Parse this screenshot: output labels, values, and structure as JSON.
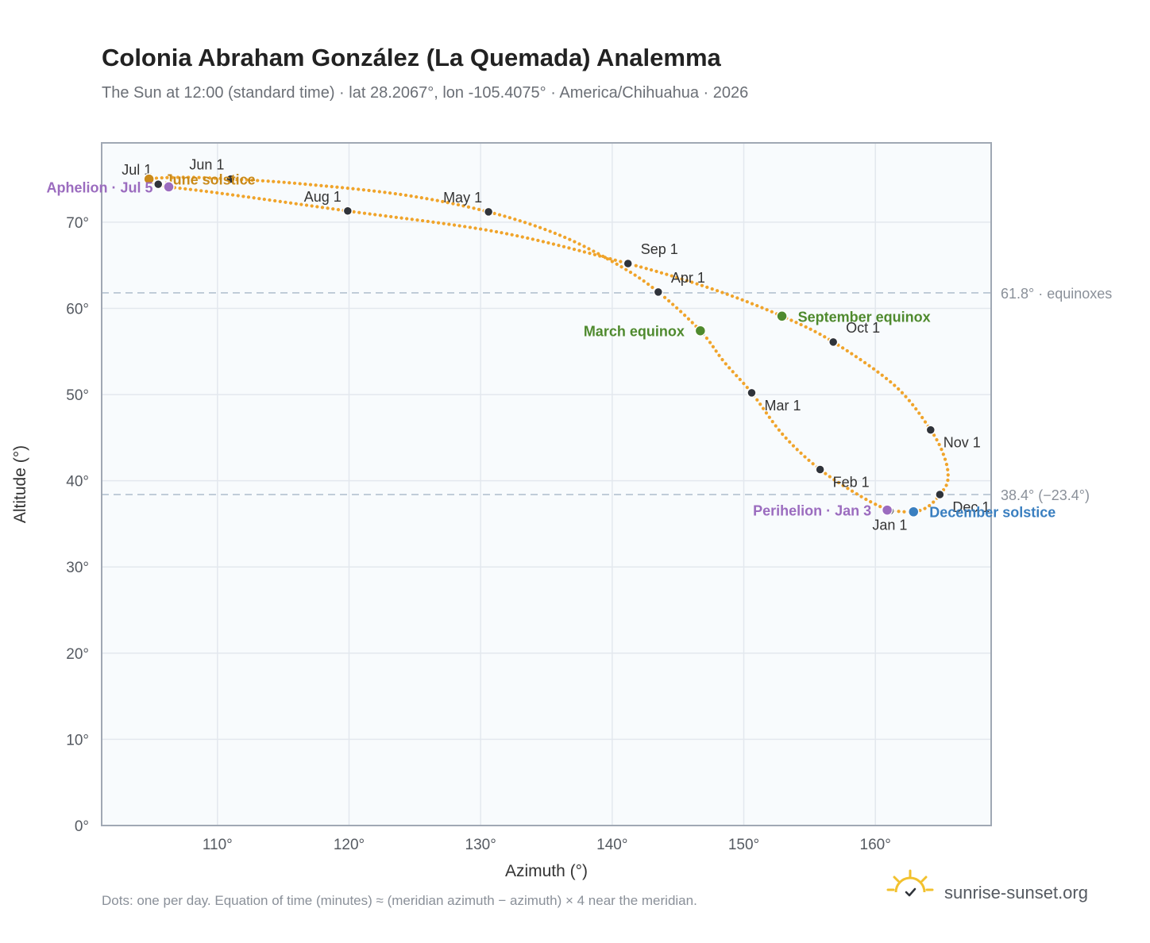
{
  "chart_data": {
    "type": "scatter",
    "title": "Colonia Abraham González (La Quemada) Analemma",
    "subtitle": "The Sun at 12:00 (standard time) · lat 28.2067°, lon -105.4075° · America/Chihuahua · 2026",
    "xlabel": "Azimuth (°)",
    "ylabel": "Altitude (°)",
    "xlim": [
      101.2,
      168.8
    ],
    "ylim": [
      0,
      79.2
    ],
    "x_ticks": [
      "110°",
      "120°",
      "130°",
      "140°",
      "150°",
      "160°"
    ],
    "y_ticks": [
      "0°",
      "10°",
      "20°",
      "30°",
      "40°",
      "50°",
      "60°",
      "70°"
    ],
    "grid": true,
    "reference_lines": [
      {
        "altitude": 61.8,
        "label": "61.8° · equinoxes"
      },
      {
        "altitude": 38.4,
        "label": "38.4° (−23.4°)"
      }
    ],
    "curve_path": [
      {
        "date": "Jan 1",
        "az": 161.1,
        "alt": 36.5
      },
      {
        "date": "Jan 15",
        "az": 159.0,
        "alt": 38.1
      },
      {
        "date": "Feb 1",
        "az": 155.8,
        "alt": 41.3
      },
      {
        "date": "Feb 15",
        "az": 153.0,
        "alt": 45.3
      },
      {
        "date": "Mar 1",
        "az": 150.6,
        "alt": 50.2
      },
      {
        "date": "Mar 10",
        "az": 148.5,
        "alt": 53.8
      },
      {
        "date": "Mar 20",
        "az": 146.7,
        "alt": 57.4
      },
      {
        "date": "Apr 1",
        "az": 143.5,
        "alt": 61.9
      },
      {
        "date": "Apr 10",
        "az": 140.5,
        "alt": 65.0
      },
      {
        "date": "Apr 20",
        "az": 136.0,
        "alt": 68.5
      },
      {
        "date": "May 1",
        "az": 130.6,
        "alt": 71.2
      },
      {
        "date": "May 10",
        "az": 124.0,
        "alt": 73.2
      },
      {
        "date": "May 20",
        "az": 116.0,
        "alt": 74.5
      },
      {
        "date": "Jun 1",
        "az": 111.0,
        "alt": 75.0
      },
      {
        "date": "Jun 10",
        "az": 107.5,
        "alt": 75.2
      },
      {
        "date": "Jun 21",
        "az": 104.8,
        "alt": 75.0
      },
      {
        "date": "Jul 1",
        "az": 105.5,
        "alt": 74.4
      },
      {
        "date": "Jul 5",
        "az": 106.3,
        "alt": 74.1
      },
      {
        "date": "Jul 15",
        "az": 110.0,
        "alt": 73.4
      },
      {
        "date": "Aug 1",
        "az": 119.9,
        "alt": 71.3
      },
      {
        "date": "Aug 15",
        "az": 131.5,
        "alt": 68.8
      },
      {
        "date": "Sep 1",
        "az": 141.2,
        "alt": 65.2
      },
      {
        "date": "Sep 10",
        "az": 147.5,
        "alt": 62.3
      },
      {
        "date": "Sep 22",
        "az": 152.9,
        "alt": 59.1
      },
      {
        "date": "Oct 1",
        "az": 156.8,
        "alt": 56.1
      },
      {
        "date": "Oct 15",
        "az": 161.5,
        "alt": 51.0
      },
      {
        "date": "Nov 1",
        "az": 164.2,
        "alt": 45.9
      },
      {
        "date": "Nov 10",
        "az": 165.3,
        "alt": 42.5
      },
      {
        "date": "Nov 20",
        "az": 165.5,
        "alt": 40.0
      },
      {
        "date": "Dec 1",
        "az": 164.9,
        "alt": 38.4
      },
      {
        "date": "Dec 11",
        "az": 164.0,
        "alt": 37.0
      },
      {
        "date": "Dec 21",
        "az": 162.9,
        "alt": 36.4
      },
      {
        "date": "Dec 31",
        "az": 161.3,
        "alt": 36.5
      }
    ],
    "month_markers": [
      {
        "label": "Jan 1",
        "az": 161.1,
        "alt": 36.5,
        "anchor": "below"
      },
      {
        "label": "Feb 1",
        "az": 155.8,
        "alt": 41.3,
        "anchor": "below-right"
      },
      {
        "label": "Mar 1",
        "az": 150.6,
        "alt": 50.2,
        "anchor": "below-right"
      },
      {
        "label": "Apr 1",
        "az": 143.5,
        "alt": 61.9,
        "anchor": "above-right"
      },
      {
        "label": "May 1",
        "az": 130.6,
        "alt": 71.2,
        "anchor": "above-left"
      },
      {
        "label": "Jun 1",
        "az": 111.0,
        "alt": 75.0,
        "anchor": "above-left"
      },
      {
        "label": "Jul 1",
        "az": 105.5,
        "alt": 74.4,
        "anchor": "above-left"
      },
      {
        "label": "Aug 1",
        "az": 119.9,
        "alt": 71.3,
        "anchor": "above-left"
      },
      {
        "label": "Sep 1",
        "az": 141.2,
        "alt": 65.2,
        "anchor": "above-right"
      },
      {
        "label": "Oct 1",
        "az": 156.8,
        "alt": 56.1,
        "anchor": "above-right"
      },
      {
        "label": "Nov 1",
        "az": 164.2,
        "alt": 45.9,
        "anchor": "below-right"
      },
      {
        "label": "Dec 1",
        "az": 164.9,
        "alt": 38.4,
        "anchor": "right"
      }
    ],
    "events": [
      {
        "label": "June solstice",
        "az": 104.8,
        "alt": 75.0,
        "color": "#c98a1a",
        "anchor": "right"
      },
      {
        "label": "Aphelion · Jul 5",
        "az": 106.3,
        "alt": 74.1,
        "color": "#9b6cbf",
        "anchor": "left"
      },
      {
        "label": "March equinox",
        "az": 146.7,
        "alt": 57.4,
        "color": "#4f8a2e",
        "anchor": "left"
      },
      {
        "label": "September equinox",
        "az": 152.9,
        "alt": 59.1,
        "color": "#4f8a2e",
        "anchor": "right"
      },
      {
        "label": "Perihelion · Jan 3",
        "az": 160.9,
        "alt": 36.6,
        "color": "#9b6cbf",
        "anchor": "left"
      },
      {
        "label": "December solstice",
        "az": 162.9,
        "alt": 36.4,
        "color": "#3a7fc0",
        "anchor": "right"
      }
    ],
    "colors": {
      "curve": "#f0a42b",
      "month_dot": "#2f333a",
      "plot_background": "#f8fbfd",
      "frame": "#a0a8b4",
      "grid": "#e3e8ee",
      "reference": "#b4c2d0"
    }
  },
  "footnote": "Dots: one per day. Equation of time (minutes) ≈ (meridian azimuth − azimuth) × 4 near the meridian.",
  "brand": {
    "name": "sunrise-sunset.org",
    "icon": "sun-logo-icon",
    "color": "#f2c12e"
  }
}
